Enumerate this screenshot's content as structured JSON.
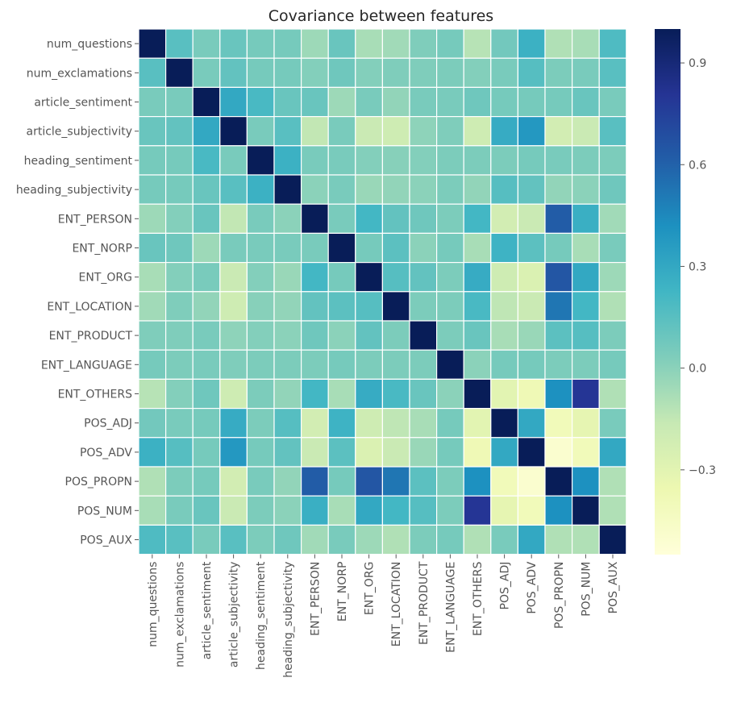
{
  "chart_data": {
    "type": "heatmap",
    "title": "Covariance between features",
    "labels": [
      "num_questions",
      "num_exclamations",
      "article_sentiment",
      "article_subjectivity",
      "heading_sentiment",
      "heading_subjectivity",
      "ENT_PERSON",
      "ENT_NORP",
      "ENT_ORG",
      "ENT_LOCATION",
      "ENT_PRODUCT",
      "ENT_LANGUAGE",
      "ENT_OTHERS",
      "POS_ADJ",
      "POS_ADV",
      "POS_PROPN",
      "POS_NUM",
      "POS_AUX"
    ],
    "values": [
      [
        1.0,
        0.15,
        0.05,
        0.1,
        0.06,
        0.06,
        -0.05,
        0.1,
        -0.08,
        -0.06,
        0.03,
        0.06,
        -0.12,
        0.07,
        0.25,
        -0.1,
        -0.08,
        0.18
      ],
      [
        0.15,
        1.0,
        0.05,
        0.12,
        0.06,
        0.06,
        0.02,
        0.08,
        0.02,
        0.03,
        0.03,
        0.04,
        0.02,
        0.05,
        0.16,
        0.04,
        0.05,
        0.15
      ],
      [
        0.05,
        0.05,
        1.0,
        0.3,
        0.2,
        0.1,
        0.1,
        -0.05,
        0.05,
        -0.02,
        0.05,
        0.05,
        0.08,
        0.06,
        0.06,
        0.06,
        0.1,
        0.05
      ],
      [
        0.1,
        0.12,
        0.3,
        1.0,
        0.05,
        0.15,
        -0.15,
        0.05,
        -0.18,
        -0.2,
        -0.01,
        0.03,
        -0.2,
        0.28,
        0.38,
        -0.22,
        -0.18,
        0.15
      ],
      [
        0.06,
        0.06,
        0.2,
        0.05,
        1.0,
        0.25,
        0.05,
        0.05,
        0.02,
        0.01,
        0.02,
        0.04,
        0.04,
        0.04,
        0.06,
        0.05,
        0.04,
        0.04
      ],
      [
        0.06,
        0.06,
        0.1,
        0.15,
        0.25,
        1.0,
        0.0,
        0.05,
        -0.04,
        -0.02,
        0.0,
        0.04,
        -0.02,
        0.16,
        0.12,
        -0.02,
        0.0,
        0.08
      ],
      [
        -0.05,
        0.02,
        0.1,
        -0.15,
        0.05,
        0.0,
        1.0,
        0.05,
        0.22,
        0.12,
        0.08,
        0.04,
        0.22,
        -0.22,
        -0.18,
        0.62,
        0.26,
        -0.06
      ],
      [
        0.1,
        0.08,
        -0.05,
        0.05,
        0.05,
        0.05,
        0.05,
        1.0,
        0.06,
        0.14,
        0.0,
        0.06,
        -0.08,
        0.24,
        0.14,
        0.06,
        -0.08,
        0.05
      ],
      [
        -0.08,
        0.02,
        0.05,
        -0.18,
        0.02,
        -0.04,
        0.22,
        0.06,
        1.0,
        0.16,
        0.12,
        0.04,
        0.28,
        -0.2,
        -0.26,
        0.65,
        0.3,
        -0.05
      ],
      [
        -0.06,
        0.03,
        -0.02,
        -0.2,
        0.01,
        -0.02,
        0.12,
        0.14,
        0.16,
        1.0,
        0.04,
        0.04,
        0.2,
        -0.14,
        -0.18,
        0.52,
        0.22,
        -0.1
      ],
      [
        0.03,
        0.03,
        0.05,
        -0.01,
        0.02,
        0.0,
        0.08,
        0.0,
        0.12,
        0.04,
        1.0,
        0.04,
        0.1,
        -0.08,
        -0.04,
        0.14,
        0.16,
        0.04
      ],
      [
        0.06,
        0.04,
        0.05,
        0.03,
        0.04,
        0.04,
        0.04,
        0.06,
        0.04,
        0.04,
        0.04,
        1.0,
        0.0,
        0.06,
        0.06,
        0.04,
        0.04,
        0.06
      ],
      [
        -0.12,
        0.02,
        0.08,
        -0.2,
        0.04,
        -0.02,
        0.22,
        -0.08,
        0.28,
        0.2,
        0.1,
        0.0,
        1.0,
        -0.3,
        -0.38,
        0.42,
        0.8,
        -0.1
      ],
      [
        0.07,
        0.05,
        0.06,
        0.28,
        0.04,
        0.16,
        -0.22,
        0.24,
        -0.2,
        -0.14,
        -0.08,
        0.06,
        -0.3,
        1.0,
        0.3,
        -0.4,
        -0.32,
        0.05
      ],
      [
        0.25,
        0.16,
        0.06,
        0.38,
        0.06,
        0.12,
        -0.18,
        0.14,
        -0.26,
        -0.18,
        -0.04,
        0.06,
        -0.38,
        0.3,
        1.0,
        -0.5,
        -0.4,
        0.3
      ],
      [
        -0.1,
        0.04,
        0.06,
        -0.22,
        0.05,
        -0.02,
        0.62,
        0.06,
        0.65,
        0.52,
        0.14,
        0.04,
        0.42,
        -0.4,
        -0.5,
        1.0,
        0.42,
        -0.1
      ],
      [
        -0.08,
        0.05,
        0.1,
        -0.18,
        0.04,
        0.0,
        0.26,
        -0.08,
        0.3,
        0.22,
        0.16,
        0.04,
        0.8,
        -0.32,
        -0.4,
        0.42,
        1.0,
        -0.1
      ],
      [
        0.18,
        0.15,
        0.05,
        0.15,
        0.04,
        0.08,
        -0.06,
        0.05,
        -0.05,
        -0.1,
        0.04,
        0.06,
        -0.1,
        0.05,
        0.3,
        -0.1,
        -0.1,
        1.0
      ]
    ],
    "vmin": -0.55,
    "vmax": 1.0,
    "colormap": "YlGnBu",
    "colorbar": {
      "ticks": [
        0.9,
        0.6,
        0.3,
        0.0,
        -0.3
      ],
      "tick_labels": [
        "0.9",
        "0.6",
        "0.3",
        "0.0",
        "−0.3"
      ]
    },
    "grid": false,
    "legend": "colorbar-right"
  }
}
